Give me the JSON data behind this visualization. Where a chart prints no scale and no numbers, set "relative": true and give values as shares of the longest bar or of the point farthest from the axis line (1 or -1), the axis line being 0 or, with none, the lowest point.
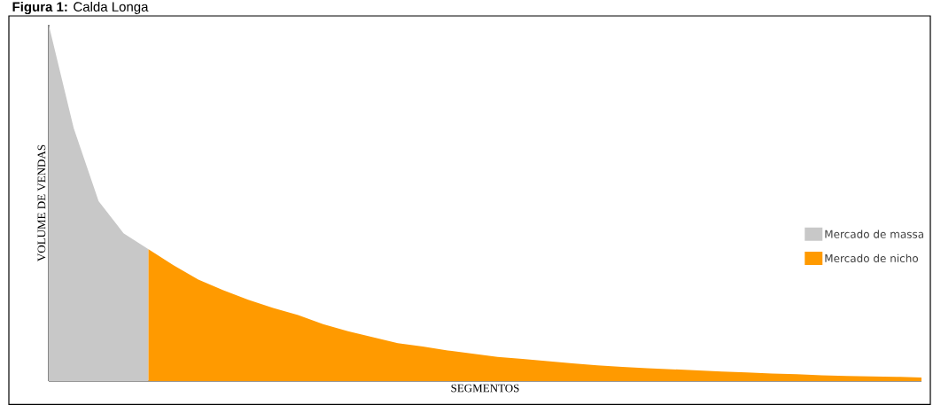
{
  "chart_data": {
    "type": "area",
    "title": "**Figura 1:** Calda Longa",
    "xlabel": "SEGMENTOS",
    "ylabel": "VOLUME DE VENDAS",
    "relative": true,
    "legend": "right",
    "categories": [
      null,
      null,
      null,
      null,
      null,
      null,
      null,
      null,
      null,
      null,
      null,
      null,
      null,
      null,
      null,
      null,
      null,
      null,
      null,
      null,
      null,
      null,
      null,
      null,
      null,
      null,
      null,
      null,
      null,
      null,
      null,
      null,
      null,
      null,
      null,
      null
    ],
    "series": [
      {
        "name": "Mercado de massa",
        "color": "#c8c8c8",
        "values": [
          1,
          0.71,
          0.505,
          0.415,
          0.37,
          null,
          null,
          null,
          null,
          null,
          null,
          null,
          null,
          null,
          null,
          null,
          null,
          null,
          null,
          null,
          null,
          null,
          null,
          null,
          null,
          null,
          null,
          null,
          null,
          null,
          null,
          null,
          null,
          null,
          null,
          null
        ]
      },
      {
        "name": "Mercado de nicho",
        "color": "#ff9a00",
        "values": [
          null,
          null,
          null,
          null,
          0.37,
          0.325,
          0.285,
          0.255,
          0.228,
          0.205,
          0.185,
          0.16,
          0.14,
          0.123,
          0.106,
          0.097,
          0.086,
          0.077,
          0.068,
          0.062,
          0.056,
          0.05,
          0.044,
          0.04,
          0.036,
          0.033,
          0.03,
          0.027,
          0.024,
          0.021,
          0.019,
          0.016,
          0.014,
          0.013,
          0.012,
          0.01
        ]
      }
    ]
  }
}
